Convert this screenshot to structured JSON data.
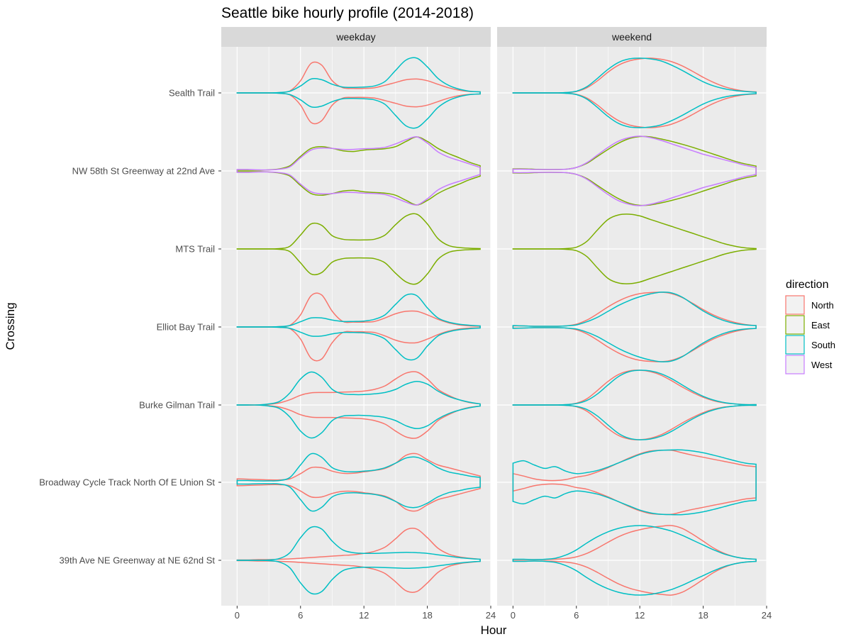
{
  "chart_data": {
    "type": "violin",
    "title": "Seattle bike hourly profile (2014-2018)",
    "xlabel": "Hour",
    "ylabel": "Crossing",
    "xlim": [
      -1.5,
      24
    ],
    "x_ticks": [
      0,
      6,
      12,
      18,
      24
    ],
    "x_tick_labels": [
      "0",
      "6",
      "12",
      "18",
      "24"
    ],
    "facets": [
      "weekday",
      "weekend"
    ],
    "grid": true,
    "legend": {
      "title": "direction",
      "position": "right",
      "entries": [
        {
          "name": "North",
          "color": "#F8766D"
        },
        {
          "name": "East",
          "color": "#7CAE00"
        },
        {
          "name": "South",
          "color": "#00BFC4"
        },
        {
          "name": "West",
          "color": "#C77CFF"
        }
      ]
    },
    "crossings": [
      "Sealth Trail",
      "NW 58th St Greenway at 22nd Ave",
      "MTS Trail",
      "Elliot Bay Trail",
      "Burke Gilman Trail",
      "Broadway Cycle Track North Of E Union St",
      "39th Ave NE Greenway at NE 62nd St"
    ],
    "density_hours": [
      0,
      1,
      2,
      3,
      4,
      5,
      6,
      7,
      8,
      9,
      10,
      11,
      12,
      13,
      14,
      15,
      16,
      17,
      18,
      19,
      20,
      21,
      22,
      23
    ],
    "series": [
      {
        "facet": "weekday",
        "crossing": "Sealth Trail",
        "direction": "North",
        "width": [
          0,
          0,
          0,
          0,
          0.01,
          0.06,
          0.35,
          0.85,
          0.8,
          0.35,
          0.15,
          0.13,
          0.13,
          0.15,
          0.22,
          0.3,
          0.38,
          0.4,
          0.35,
          0.25,
          0.15,
          0.08,
          0.04,
          0.03
        ]
      },
      {
        "facet": "weekday",
        "crossing": "Sealth Trail",
        "direction": "South",
        "width": [
          0,
          0,
          0,
          0,
          0.01,
          0.05,
          0.2,
          0.4,
          0.38,
          0.25,
          0.17,
          0.16,
          0.17,
          0.2,
          0.33,
          0.65,
          0.95,
          1.0,
          0.75,
          0.42,
          0.22,
          0.11,
          0.05,
          0.03
        ]
      },
      {
        "facet": "weekday",
        "crossing": "NW 58th St Greenway at 22nd Ave",
        "direction": "East",
        "width": [
          0.02,
          0.02,
          0.02,
          0.03,
          0.06,
          0.15,
          0.42,
          0.65,
          0.7,
          0.65,
          0.58,
          0.56,
          0.6,
          0.62,
          0.64,
          0.7,
          0.85,
          0.98,
          0.85,
          0.65,
          0.5,
          0.38,
          0.25,
          0.15
        ]
      },
      {
        "facet": "weekday",
        "crossing": "NW 58th St Greenway at 22nd Ave",
        "direction": "West",
        "width": [
          0.04,
          0.04,
          0.03,
          0.03,
          0.05,
          0.12,
          0.38,
          0.6,
          0.66,
          0.65,
          0.62,
          0.62,
          0.64,
          0.65,
          0.68,
          0.78,
          0.9,
          0.98,
          0.8,
          0.55,
          0.4,
          0.3,
          0.2,
          0.1
        ]
      },
      {
        "facet": "weekday",
        "crossing": "MTS Trail",
        "direction": "East",
        "width": [
          0,
          0,
          0,
          0,
          0.01,
          0.08,
          0.4,
          0.72,
          0.68,
          0.38,
          0.28,
          0.26,
          0.26,
          0.28,
          0.4,
          0.7,
          0.95,
          1.0,
          0.72,
          0.3,
          0.1,
          0.04,
          0.02,
          0.01
        ]
      },
      {
        "facet": "weekday",
        "crossing": "Elliot Bay Trail",
        "direction": "North",
        "width": [
          0,
          0,
          0,
          0,
          0.01,
          0.05,
          0.35,
          0.9,
          0.92,
          0.45,
          0.16,
          0.14,
          0.14,
          0.16,
          0.26,
          0.38,
          0.45,
          0.45,
          0.35,
          0.22,
          0.12,
          0.06,
          0.03,
          0.02
        ]
      },
      {
        "facet": "weekday",
        "crossing": "Elliot Bay Trail",
        "direction": "South",
        "width": [
          0,
          0,
          0,
          0,
          0.01,
          0.04,
          0.15,
          0.26,
          0.26,
          0.2,
          0.16,
          0.16,
          0.17,
          0.22,
          0.35,
          0.65,
          0.92,
          0.9,
          0.55,
          0.26,
          0.14,
          0.08,
          0.05,
          0.03
        ]
      },
      {
        "facet": "weekday",
        "crossing": "Burke Gilman Trail",
        "direction": "North",
        "width": [
          0,
          0,
          0,
          0.02,
          0.06,
          0.15,
          0.28,
          0.35,
          0.36,
          0.36,
          0.37,
          0.38,
          0.4,
          0.45,
          0.55,
          0.75,
          0.92,
          0.95,
          0.75,
          0.45,
          0.28,
          0.15,
          0.07,
          0.03
        ]
      },
      {
        "facet": "weekday",
        "crossing": "Burke Gilman Trail",
        "direction": "South",
        "width": [
          0,
          0,
          0,
          0.03,
          0.1,
          0.35,
          0.75,
          0.95,
          0.8,
          0.45,
          0.32,
          0.3,
          0.3,
          0.32,
          0.36,
          0.45,
          0.6,
          0.68,
          0.6,
          0.4,
          0.25,
          0.15,
          0.08,
          0.03
        ]
      },
      {
        "facet": "weekday",
        "crossing": "Broadway Cycle Track North Of E Union St",
        "direction": "North",
        "width": [
          0.1,
          0.09,
          0.08,
          0.07,
          0.07,
          0.1,
          0.25,
          0.42,
          0.42,
          0.32,
          0.26,
          0.26,
          0.3,
          0.34,
          0.4,
          0.55,
          0.78,
          0.82,
          0.65,
          0.5,
          0.42,
          0.34,
          0.26,
          0.18
        ]
      },
      {
        "facet": "weekday",
        "crossing": "Broadway Cycle Track North Of E Union St",
        "direction": "South",
        "width": [
          0.05,
          0.05,
          0.04,
          0.04,
          0.05,
          0.14,
          0.5,
          0.82,
          0.72,
          0.42,
          0.32,
          0.3,
          0.32,
          0.35,
          0.42,
          0.55,
          0.7,
          0.72,
          0.6,
          0.42,
          0.3,
          0.24,
          0.18,
          0.14
        ]
      },
      {
        "facet": "weekday",
        "crossing": "39th Ave NE Greenway at NE 62nd St",
        "direction": "North",
        "width": [
          0.01,
          0.01,
          0.02,
          0.02,
          0.03,
          0.04,
          0.06,
          0.08,
          0.1,
          0.12,
          0.14,
          0.16,
          0.2,
          0.26,
          0.38,
          0.62,
          0.88,
          0.9,
          0.65,
          0.35,
          0.18,
          0.1,
          0.06,
          0.03
        ]
      },
      {
        "facet": "weekday",
        "crossing": "39th Ave NE Greenway at NE 62nd St",
        "direction": "South",
        "width": [
          0,
          0,
          0,
          0.01,
          0.05,
          0.22,
          0.65,
          0.95,
          0.9,
          0.55,
          0.3,
          0.22,
          0.2,
          0.2,
          0.21,
          0.22,
          0.23,
          0.22,
          0.2,
          0.16,
          0.12,
          0.08,
          0.05,
          0.03
        ]
      },
      {
        "facet": "weekend",
        "crossing": "Sealth Trail",
        "direction": "North",
        "width": [
          0,
          0,
          0,
          0,
          0,
          0.01,
          0.04,
          0.15,
          0.35,
          0.6,
          0.8,
          0.92,
          0.98,
          1.0,
          0.97,
          0.9,
          0.78,
          0.62,
          0.45,
          0.3,
          0.18,
          0.1,
          0.05,
          0.03
        ]
      },
      {
        "facet": "weekend",
        "crossing": "Sealth Trail",
        "direction": "South",
        "width": [
          0,
          0,
          0,
          0,
          0,
          0.01,
          0.05,
          0.18,
          0.42,
          0.68,
          0.88,
          0.98,
          1.0,
          0.98,
          0.92,
          0.8,
          0.65,
          0.48,
          0.32,
          0.2,
          0.12,
          0.07,
          0.04,
          0.02
        ]
      },
      {
        "facet": "weekend",
        "crossing": "NW 58th St Greenway at 22nd Ave",
        "direction": "East",
        "width": [
          0.06,
          0.06,
          0.05,
          0.04,
          0.04,
          0.05,
          0.1,
          0.22,
          0.42,
          0.62,
          0.8,
          0.93,
          0.99,
          0.98,
          0.92,
          0.85,
          0.77,
          0.68,
          0.58,
          0.48,
          0.38,
          0.28,
          0.2,
          0.14
        ]
      },
      {
        "facet": "weekend",
        "crossing": "NW 58th St Greenway at 22nd Ave",
        "direction": "West",
        "width": [
          0.05,
          0.05,
          0.04,
          0.04,
          0.04,
          0.05,
          0.1,
          0.24,
          0.46,
          0.68,
          0.86,
          0.96,
          1.0,
          0.96,
          0.88,
          0.78,
          0.68,
          0.58,
          0.48,
          0.4,
          0.32,
          0.24,
          0.16,
          0.1
        ]
      },
      {
        "facet": "weekend",
        "crossing": "MTS Trail",
        "direction": "East",
        "width": [
          0,
          0,
          0,
          0,
          0,
          0.01,
          0.05,
          0.22,
          0.55,
          0.85,
          0.98,
          1.0,
          0.95,
          0.85,
          0.75,
          0.65,
          0.55,
          0.45,
          0.35,
          0.25,
          0.15,
          0.08,
          0.03,
          0.01
        ]
      },
      {
        "facet": "weekend",
        "crossing": "Elliot Bay Trail",
        "direction": "North",
        "width": [
          0.03,
          0.03,
          0.02,
          0.02,
          0.02,
          0.03,
          0.08,
          0.2,
          0.38,
          0.58,
          0.75,
          0.88,
          0.96,
          0.99,
          1.0,
          0.96,
          0.85,
          0.68,
          0.5,
          0.34,
          0.22,
          0.13,
          0.07,
          0.04
        ]
      },
      {
        "facet": "weekend",
        "crossing": "Elliot Bay Trail",
        "direction": "South",
        "width": [
          0.04,
          0.03,
          0.02,
          0.02,
          0.02,
          0.03,
          0.06,
          0.15,
          0.28,
          0.45,
          0.62,
          0.76,
          0.87,
          0.95,
          1.0,
          0.98,
          0.86,
          0.66,
          0.46,
          0.3,
          0.18,
          0.1,
          0.06,
          0.04
        ]
      },
      {
        "facet": "weekend",
        "crossing": "Burke Gilman Trail",
        "direction": "North",
        "width": [
          0,
          0,
          0,
          0,
          0,
          0.01,
          0.05,
          0.18,
          0.42,
          0.68,
          0.88,
          0.98,
          1.0,
          0.96,
          0.86,
          0.7,
          0.52,
          0.36,
          0.22,
          0.12,
          0.06,
          0.03,
          0.01,
          0.01
        ]
      },
      {
        "facet": "weekend",
        "crossing": "Burke Gilman Trail",
        "direction": "South",
        "width": [
          0,
          0,
          0,
          0,
          0,
          0.01,
          0.04,
          0.13,
          0.32,
          0.58,
          0.82,
          0.96,
          1.0,
          0.98,
          0.9,
          0.76,
          0.58,
          0.4,
          0.25,
          0.14,
          0.07,
          0.03,
          0.01,
          0.01
        ]
      },
      {
        "facet": "weekend",
        "crossing": "Broadway Cycle Track North Of E Union St",
        "direction": "North",
        "width": [
          0.25,
          0.18,
          0.1,
          0.06,
          0.05,
          0.08,
          0.15,
          0.2,
          0.3,
          0.42,
          0.56,
          0.7,
          0.82,
          0.9,
          0.92,
          0.92,
          0.85,
          0.78,
          0.72,
          0.66,
          0.6,
          0.54,
          0.48,
          0.45
        ]
      },
      {
        "facet": "weekend",
        "crossing": "Broadway Cycle Track North Of E Union St",
        "direction": "South",
        "width": [
          0.55,
          0.62,
          0.5,
          0.4,
          0.45,
          0.32,
          0.25,
          0.28,
          0.34,
          0.44,
          0.56,
          0.68,
          0.8,
          0.88,
          0.92,
          0.93,
          0.93,
          0.9,
          0.85,
          0.78,
          0.7,
          0.62,
          0.55,
          0.52
        ]
      },
      {
        "facet": "weekend",
        "crossing": "39th Ave NE Greenway at NE 62nd St",
        "direction": "North",
        "width": [
          0.02,
          0.02,
          0.02,
          0.02,
          0.03,
          0.05,
          0.1,
          0.2,
          0.35,
          0.52,
          0.68,
          0.8,
          0.88,
          0.94,
          0.98,
          1.0,
          0.92,
          0.75,
          0.55,
          0.35,
          0.2,
          0.1,
          0.05,
          0.03
        ]
      },
      {
        "facet": "weekend",
        "crossing": "39th Ave NE Greenway at NE 62nd St",
        "direction": "South",
        "width": [
          0.03,
          0.03,
          0.02,
          0.03,
          0.06,
          0.15,
          0.3,
          0.5,
          0.68,
          0.82,
          0.92,
          0.98,
          1.0,
          0.98,
          0.92,
          0.84,
          0.72,
          0.58,
          0.44,
          0.3,
          0.18,
          0.1,
          0.05,
          0.03
        ]
      }
    ]
  }
}
